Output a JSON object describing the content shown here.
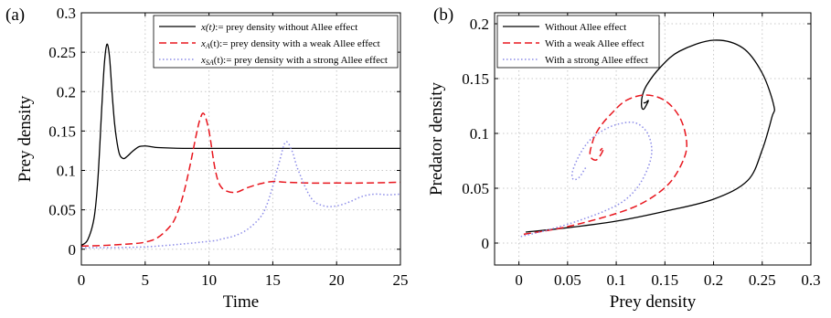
{
  "colors": {
    "without": "#000000",
    "weak": "#e8161e",
    "strong": "#8c8ce8"
  },
  "chart_data": [
    {
      "type": "line",
      "panel_label": "(a)",
      "xlabel": "Time",
      "ylabel": "Prey density",
      "xlim": [
        0,
        25
      ],
      "ylim": [
        -0.02,
        0.3
      ],
      "xticks": [
        0,
        5,
        10,
        15,
        20,
        25
      ],
      "yticks": [
        0,
        0.05,
        0.1,
        0.15,
        0.2,
        0.25,
        0.3
      ],
      "xtick_labels": [
        "0",
        "5",
        "10",
        "15",
        "20",
        "25"
      ],
      "ytick_labels": [
        "0",
        "0.05",
        "0.1",
        "0.15",
        "0.2",
        "0.25",
        "0.3"
      ],
      "grid": true,
      "legend_position": "top-right",
      "series": [
        {
          "key": "without",
          "legend_var": "x(t)",
          "legend_sub": "",
          "legend_rest": ":= prey density without Allee effect",
          "style": "solid",
          "x": [
            0,
            0.5,
            1,
            1.3,
            1.6,
            1.8,
            2,
            2.2,
            2.4,
            2.6,
            2.8,
            3,
            3.3,
            3.6,
            4,
            4.5,
            5,
            5.5,
            6,
            8,
            10,
            15,
            20,
            25
          ],
          "y": [
            0.005,
            0.012,
            0.04,
            0.09,
            0.18,
            0.235,
            0.26,
            0.245,
            0.2,
            0.16,
            0.135,
            0.12,
            0.115,
            0.118,
            0.124,
            0.13,
            0.131,
            0.13,
            0.129,
            0.128,
            0.128,
            0.128,
            0.128,
            0.128
          ]
        },
        {
          "key": "weak",
          "legend_var": "x",
          "legend_sub": "A",
          "legend_rest": "(t):= prey density with a weak Allee effect",
          "style": "dashed",
          "x": [
            0,
            2,
            4,
            5,
            6,
            7,
            7.5,
            8,
            8.5,
            9,
            9.3,
            9.6,
            10,
            10.5,
            11,
            12,
            13,
            14,
            15,
            16,
            18,
            20,
            22,
            25
          ],
          "y": [
            0.004,
            0.005,
            0.007,
            0.009,
            0.015,
            0.03,
            0.045,
            0.07,
            0.105,
            0.145,
            0.165,
            0.172,
            0.15,
            0.1,
            0.078,
            0.072,
            0.078,
            0.083,
            0.086,
            0.085,
            0.084,
            0.084,
            0.084,
            0.085
          ]
        },
        {
          "key": "strong",
          "legend_var": "x",
          "legend_sub": "SA",
          "legend_rest": "(t):= prey density with a strong Allee effect",
          "style": "dotted",
          "x": [
            0,
            5,
            10,
            11,
            12,
            13,
            14,
            14.5,
            15,
            15.5,
            16,
            16.5,
            17,
            18,
            19,
            20,
            21,
            22,
            23,
            24,
            25
          ],
          "y": [
            0.002,
            0.003,
            0.01,
            0.013,
            0.017,
            0.025,
            0.04,
            0.055,
            0.08,
            0.11,
            0.136,
            0.125,
            0.1,
            0.065,
            0.055,
            0.055,
            0.06,
            0.067,
            0.07,
            0.069,
            0.07
          ]
        }
      ]
    },
    {
      "type": "line",
      "panel_label": "(b)",
      "xlabel": "Prey density",
      "ylabel": "Predator density",
      "xlim": [
        -0.025,
        0.3
      ],
      "ylim": [
        -0.02,
        0.21
      ],
      "xticks": [
        0,
        0.05,
        0.1,
        0.15,
        0.2,
        0.25,
        0.3
      ],
      "yticks": [
        0,
        0.05,
        0.1,
        0.15,
        0.2
      ],
      "xtick_labels": [
        "0",
        "0.05",
        "0.1",
        "0.15",
        "0.2",
        "0.25",
        "0.3"
      ],
      "ytick_labels": [
        "0",
        "0.05",
        "0.1",
        "0.15",
        "0.2"
      ],
      "grid": true,
      "legend_position": "top-left",
      "series": [
        {
          "key": "without",
          "name": "Without Allee effect",
          "style": "solid",
          "x": [
            0.007,
            0.05,
            0.1,
            0.15,
            0.2,
            0.235,
            0.25,
            0.26,
            0.262,
            0.25,
            0.23,
            0.2,
            0.165,
            0.145,
            0.132,
            0.127,
            0.126,
            0.128,
            0.131,
            0.133,
            0.13,
            0.128
          ],
          "y": [
            0.01,
            0.014,
            0.02,
            0.029,
            0.04,
            0.057,
            0.085,
            0.115,
            0.125,
            0.155,
            0.178,
            0.185,
            0.175,
            0.16,
            0.145,
            0.135,
            0.125,
            0.122,
            0.126,
            0.13,
            0.128,
            0.128
          ]
        },
        {
          "key": "weak",
          "name": "With a weak Allee effect",
          "style": "dashed",
          "x": [
            0.005,
            0.05,
            0.1,
            0.13,
            0.155,
            0.17,
            0.172,
            0.165,
            0.15,
            0.13,
            0.11,
            0.095,
            0.085,
            0.078,
            0.075,
            0.073,
            0.075,
            0.08,
            0.085,
            0.087,
            0.084,
            0.084
          ],
          "y": [
            0.008,
            0.015,
            0.027,
            0.038,
            0.055,
            0.078,
            0.095,
            0.115,
            0.13,
            0.135,
            0.13,
            0.118,
            0.108,
            0.098,
            0.09,
            0.082,
            0.077,
            0.076,
            0.082,
            0.087,
            0.085,
            0.084
          ]
        },
        {
          "key": "strong",
          "name": "With a strong Allee effect",
          "style": "dotted",
          "x": [
            0.002,
            0.03,
            0.06,
            0.09,
            0.11,
            0.125,
            0.135,
            0.136,
            0.13,
            0.118,
            0.1,
            0.085,
            0.072,
            0.062,
            0.055,
            0.056,
            0.062,
            0.068,
            0.07
          ],
          "y": [
            0.006,
            0.012,
            0.02,
            0.03,
            0.04,
            0.055,
            0.075,
            0.09,
            0.103,
            0.11,
            0.108,
            0.102,
            0.093,
            0.08,
            0.065,
            0.058,
            0.06,
            0.068,
            0.07
          ]
        }
      ]
    }
  ]
}
